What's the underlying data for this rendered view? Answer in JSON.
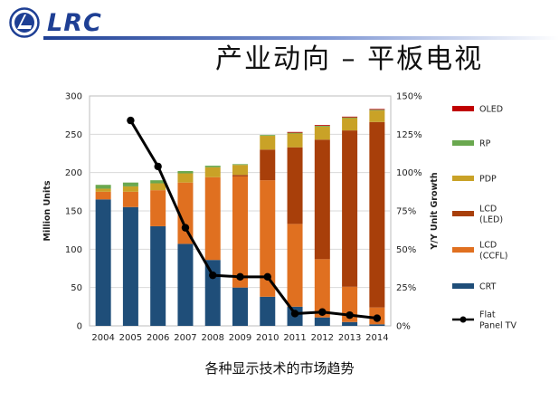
{
  "header": {
    "logo_text": "LRC",
    "title": "产业动向 – 平板电视"
  },
  "caption": "各种显示技术的市场趋势",
  "colors": {
    "brand_blue": "#1e3f94",
    "CRT": "#1f4e79",
    "LCD_CCFL": "#e07020",
    "LCD_LED": "#a83f0a",
    "PDP": "#c9a227",
    "RP": "#6aa84f",
    "OLED": "#c00000",
    "line": "#000000"
  },
  "chart_data": {
    "type": "bar",
    "stacked": true,
    "categories": [
      "2004",
      "2005",
      "2006",
      "2007",
      "2008",
      "2009",
      "2010",
      "2011",
      "2012",
      "2013",
      "2014"
    ],
    "ylabel": "Million Units",
    "y2label": "Y/Y Unit Growth",
    "ylim": [
      0,
      300
    ],
    "yticks": [
      "0",
      "50",
      "100",
      "150",
      "200",
      "250",
      "300"
    ],
    "y2lim": [
      0,
      150
    ],
    "y2ticks": [
      "0%",
      "25%",
      "50%",
      "75%",
      "100%",
      "125%",
      "150%"
    ],
    "grid": true,
    "legend_position": "right",
    "series": [
      {
        "name": "CRT",
        "key": "CRT",
        "values": [
          165,
          155,
          130,
          107,
          86,
          50,
          38,
          25,
          11,
          5,
          2
        ]
      },
      {
        "name": "LCD\n(CCFL)",
        "key": "LCD_CCFL",
        "values": [
          10,
          20,
          47,
          80,
          108,
          145,
          152,
          108,
          76,
          46,
          22
        ]
      },
      {
        "name": "LCD\n(LED)",
        "key": "LCD_LED",
        "values": [
          0,
          0,
          0,
          0,
          0,
          2,
          40,
          100,
          156,
          204,
          242
        ]
      },
      {
        "name": "PDP",
        "key": "PDP",
        "values": [
          4,
          7,
          9,
          12,
          13,
          13,
          18,
          18,
          17,
          16,
          15
        ]
      },
      {
        "name": "RP",
        "key": "RP",
        "values": [
          5,
          5,
          4,
          3,
          2,
          1,
          1,
          1,
          1,
          1,
          1
        ]
      },
      {
        "name": "OLED",
        "key": "OLED",
        "values": [
          0,
          0,
          0,
          0,
          0,
          0,
          0,
          1,
          1,
          1,
          1
        ]
      }
    ],
    "line_series": {
      "name": "Flat\nPanel TV",
      "axis": "right",
      "x": [
        "2005",
        "2006",
        "2007",
        "2008",
        "2009",
        "2010",
        "2011",
        "2012",
        "2013",
        "2014"
      ],
      "values": [
        134,
        104,
        64,
        33,
        32,
        32,
        8,
        9,
        7,
        5
      ]
    },
    "legend_order": [
      "OLED",
      "RP",
      "PDP",
      "LCD_LED",
      "LCD_CCFL",
      "CRT",
      "line"
    ]
  }
}
